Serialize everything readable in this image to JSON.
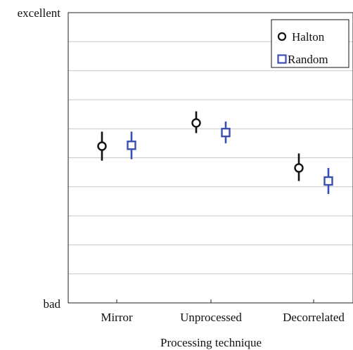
{
  "chart_data": {
    "type": "scatter",
    "title": "",
    "xlabel": "Processing technique",
    "ylabel": "",
    "categories": [
      "Mirror",
      "Unprocessed",
      "Decorrelated"
    ],
    "y_tick_labels": {
      "top": "excellent",
      "bottom": "bad"
    },
    "ylim": [
      0,
      100
    ],
    "y_gridlines": [
      10,
      20,
      30,
      40,
      50,
      60,
      70,
      80,
      90
    ],
    "grid": "horizontal",
    "legend_position": "top-right",
    "series": [
      {
        "name": "Halton",
        "marker": "circle",
        "color": "#111111",
        "values": [
          54,
          62,
          46.5
        ],
        "err_low": [
          49,
          58.5,
          42
        ],
        "err_high": [
          59,
          66,
          51.5
        ]
      },
      {
        "name": "Random",
        "marker": "square",
        "color": "#3a4fb0",
        "values": [
          54.3,
          58.7,
          42
        ],
        "err_low": [
          49.5,
          55,
          37.5
        ],
        "err_high": [
          59,
          62.5,
          46.5
        ]
      }
    ]
  }
}
